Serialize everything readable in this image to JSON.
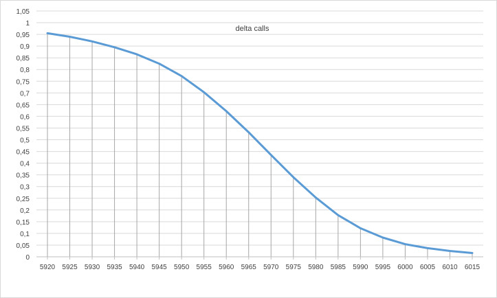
{
  "chart_data": {
    "type": "line",
    "title": "delta calls",
    "xlabel": "",
    "ylabel": "",
    "x": [
      5920,
      5925,
      5930,
      5935,
      5940,
      5945,
      5950,
      5955,
      5960,
      5965,
      5970,
      5975,
      5980,
      5985,
      5990,
      5995,
      6000,
      6005,
      6010,
      6015
    ],
    "series": [
      {
        "values": [
          0.955,
          0.94,
          0.92,
          0.895,
          0.865,
          0.825,
          0.772,
          0.703,
          0.622,
          0.532,
          0.435,
          0.34,
          0.253,
          0.178,
          0.122,
          0.082,
          0.054,
          0.037,
          0.025,
          0.016
        ],
        "color": "#5b9bd5"
      }
    ],
    "ylim": [
      0,
      1.05
    ],
    "y_ticks": [
      "0",
      "0,05",
      "0,1",
      "0,15",
      "0,2",
      "0,25",
      "0,3",
      "0,35",
      "0,4",
      "0,45",
      "0,5",
      "0,55",
      "0,6",
      "0,65",
      "0,7",
      "0,75",
      "0,8",
      "0,85",
      "0,9",
      "0,95",
      "1",
      "1,05"
    ],
    "x_ticks": [
      "5920",
      "5925",
      "5930",
      "5935",
      "5940",
      "5945",
      "5950",
      "5955",
      "5960",
      "5965",
      "5970",
      "5975",
      "5980",
      "5985",
      "5990",
      "5995",
      "6000",
      "6005",
      "6010",
      "6015"
    ],
    "grid": true,
    "drop_lines": true,
    "legend": "none"
  }
}
